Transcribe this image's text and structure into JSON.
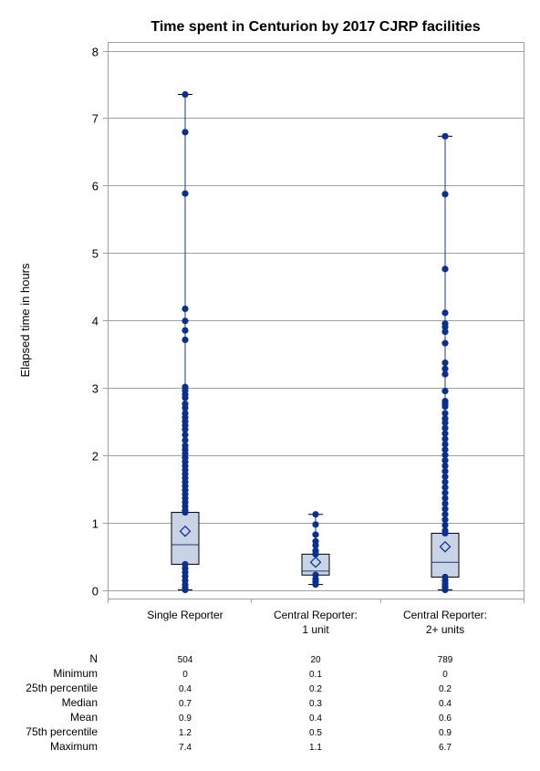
{
  "chart_data": {
    "type": "boxplot",
    "title": "Time spent in Centurion by 2017 CJRP facilities",
    "ylabel": "Elapsed time in hours",
    "ylim": [
      0,
      8
    ],
    "yticks": [
      "0",
      "1",
      "2",
      "3",
      "4",
      "5",
      "6",
      "7",
      "8"
    ],
    "grid": true,
    "colors": {
      "box_fill": "#c9d3e6",
      "point": "#0a2f8c",
      "whisker": "#1a3a7a",
      "grid": "#a0a0a0"
    },
    "categories": [
      {
        "label_lines": [
          "Single Reporter"
        ],
        "q1": 0.38,
        "median": 0.67,
        "q3": 1.15,
        "mean": 0.87,
        "min": 0,
        "max": 7.35,
        "points": [
          7.35,
          6.79,
          5.88,
          4.17,
          3.99,
          3.85,
          3.71,
          3.01,
          2.96,
          2.9,
          2.85,
          2.76,
          2.7,
          2.62,
          2.56,
          2.5,
          2.44,
          2.38,
          2.3,
          2.22,
          2.14,
          2.08,
          2.02,
          1.96,
          1.9,
          1.84,
          1.78,
          1.72,
          1.66,
          1.6,
          1.54,
          1.48,
          1.42,
          1.36,
          1.3,
          1.24,
          1.18,
          1.15,
          0.38,
          0.32,
          0.26,
          0.2,
          0.14,
          0.08,
          0.03,
          0
        ]
      },
      {
        "label_lines": [
          "Central Reporter:",
          "1 unit"
        ],
        "q1": 0.22,
        "median": 0.28,
        "q3": 0.53,
        "mean": 0.41,
        "min": 0.08,
        "max": 1.12,
        "points": [
          1.12,
          0.97,
          0.82,
          0.72,
          0.66,
          0.58,
          0.53,
          0.22,
          0.16,
          0.12,
          0.08
        ]
      },
      {
        "label_lines": [
          "Central Reporter:",
          "2+ units"
        ],
        "q1": 0.19,
        "median": 0.41,
        "q3": 0.84,
        "mean": 0.64,
        "min": 0,
        "max": 6.73,
        "points": [
          6.73,
          5.87,
          4.76,
          4.11,
          3.95,
          3.9,
          3.83,
          3.66,
          3.37,
          3.28,
          3.2,
          2.95,
          2.8,
          2.76,
          2.72,
          2.62,
          2.54,
          2.48,
          2.4,
          2.32,
          2.24,
          2.16,
          2.08,
          2.0,
          1.92,
          1.84,
          1.76,
          1.68,
          1.6,
          1.52,
          1.44,
          1.36,
          1.28,
          1.2,
          1.12,
          1.04,
          0.96,
          0.88,
          0.84,
          0.19,
          0.14,
          0.09,
          0.05,
          0.02,
          0
        ]
      }
    ]
  },
  "stats_table": {
    "rows": [
      {
        "label": "N",
        "values": [
          "504",
          "20",
          "789"
        ]
      },
      {
        "label": "Minimum",
        "values": [
          "0",
          "0.1",
          "0"
        ]
      },
      {
        "label": "25th percentile",
        "values": [
          "0.4",
          "0.2",
          "0.2"
        ]
      },
      {
        "label": "Median",
        "values": [
          "0.7",
          "0.3",
          "0.4"
        ]
      },
      {
        "label": "Mean",
        "values": [
          "0.9",
          "0.4",
          "0.6"
        ]
      },
      {
        "label": "75th percentile",
        "values": [
          "1.2",
          "0.5",
          "0.9"
        ]
      },
      {
        "label": "Maximum",
        "values": [
          "7.4",
          "1.1",
          "6.7"
        ]
      }
    ]
  }
}
